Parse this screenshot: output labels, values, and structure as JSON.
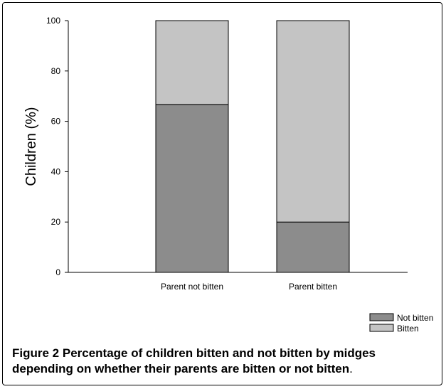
{
  "chart_data": {
    "type": "bar",
    "stacked": true,
    "categories": [
      "Parent not bitten",
      "Parent bitten"
    ],
    "series": [
      {
        "name": "Not bitten",
        "values": [
          66.7,
          20
        ],
        "color": "#8c8c8c"
      },
      {
        "name": "Bitten",
        "values": [
          33.3,
          80
        ],
        "color": "#c4c4c4"
      }
    ],
    "ylabel": "Children (%)",
    "xlabel": "",
    "ylim": [
      0,
      100
    ],
    "yticks": [
      0,
      20,
      40,
      60,
      80,
      100
    ],
    "legend_position": "bottom-right",
    "grid": false
  },
  "caption": {
    "label": "Figure 2",
    "text": "Percentage of children bitten and not bitten by midges depending on whether their parents are bitten or not bitten",
    "end": "."
  }
}
